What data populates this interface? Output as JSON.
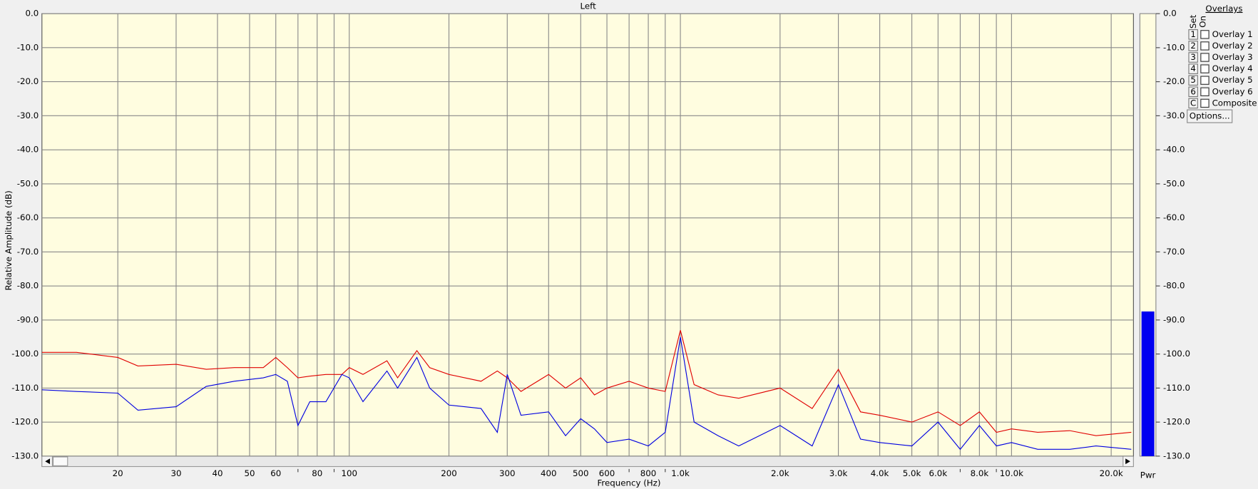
{
  "chart_data": {
    "type": "line",
    "title": "Left",
    "x_label": "Frequency (Hz)",
    "y_label": "Relative Amplitude (dB)",
    "x_scale": "log",
    "grid": true,
    "background": "#fffde0",
    "xlim": [
      11.8,
      23350
    ],
    "ylim": [
      -130,
      0
    ],
    "xticks": [
      20,
      30,
      40,
      50,
      60,
      80,
      100,
      200,
      300,
      400,
      500,
      600,
      800,
      {
        "value": 1000,
        "label": "1.0k"
      },
      {
        "value": 2000,
        "label": "2.0k"
      },
      {
        "value": 3000,
        "label": "3.0k"
      },
      {
        "value": 4000,
        "label": "4.0k"
      },
      {
        "value": 5000,
        "label": "5.0k"
      },
      {
        "value": 6000,
        "label": "6.0k"
      },
      {
        "value": 8000,
        "label": "8.0k"
      },
      {
        "value": 10000,
        "label": "10.0k"
      },
      {
        "value": 20000,
        "label": "20.0k"
      }
    ],
    "xminorticks": [
      70,
      90,
      700,
      900,
      7000,
      9000
    ],
    "yticks": [
      {
        "value": 0,
        "label": "0.0"
      },
      {
        "value": -10,
        "label": "-10.0"
      },
      {
        "value": -20,
        "label": "-20.0"
      },
      {
        "value": -30,
        "label": "-30.0"
      },
      {
        "value": -40,
        "label": "-40.0"
      },
      {
        "value": -50,
        "label": "-50.0"
      },
      {
        "value": -60,
        "label": "-60.0"
      },
      {
        "value": -70,
        "label": "-70.0"
      },
      {
        "value": -80,
        "label": "-80.0"
      },
      {
        "value": -90,
        "label": "-90.0"
      },
      {
        "value": -100,
        "label": "-100.0"
      },
      {
        "value": -110,
        "label": "-110.0"
      },
      {
        "value": -120,
        "label": "-120.0"
      },
      {
        "value": -130,
        "label": "-130.0"
      }
    ],
    "x": [
      11.8,
      15,
      20,
      23,
      30,
      37,
      45,
      55,
      60,
      65,
      70,
      76,
      85,
      95,
      100,
      110,
      130,
      140,
      160,
      175,
      200,
      250,
      280,
      300,
      330,
      400,
      450,
      500,
      550,
      600,
      700,
      800,
      900,
      1000,
      1100,
      1300,
      1500,
      2000,
      2500,
      3000,
      3500,
      4000,
      5000,
      6000,
      7000,
      8000,
      9000,
      10000,
      12000,
      15000,
      18000,
      23000
    ],
    "series": [
      {
        "color": "#e00000",
        "values": [
          -99.5,
          -99.5,
          -101,
          -103.5,
          -103,
          -104.5,
          -104,
          -104,
          -101,
          -104,
          -107,
          -106.5,
          -106,
          -106,
          -104,
          -106,
          -102,
          -107,
          -99,
          -104,
          -106,
          -108,
          -105,
          -107,
          -111,
          -106,
          -110,
          -107,
          -112,
          -110,
          -108,
          -110,
          -111,
          -93,
          -109,
          -112,
          -113,
          -110,
          -116,
          -104.5,
          -117,
          -118,
          -120,
          -117,
          -121,
          -117,
          -123,
          -122,
          -123,
          -122.5,
          -124,
          -123
        ]
      },
      {
        "color": "#0000e0",
        "values": [
          -110.5,
          -111,
          -111.5,
          -116.5,
          -115.5,
          -109.5,
          -108,
          -107,
          -106,
          -108,
          -121,
          -114,
          -114,
          -106,
          -107,
          -114,
          -105,
          -110,
          -101,
          -110,
          -115,
          -116,
          -123,
          -106,
          -118,
          -117,
          -124,
          -119,
          -122,
          -126,
          -125,
          -127,
          -123,
          -95,
          -120,
          -124,
          -127,
          -121,
          -127,
          -109,
          -125,
          -126,
          -127,
          -120,
          -128,
          -121,
          -127,
          -126,
          -128,
          -128,
          -127,
          -128
        ]
      }
    ]
  },
  "meter": {
    "label": "Pwr",
    "value": -87.5,
    "color": "#0000f0"
  },
  "overlays": {
    "title": "Overlays",
    "set_label": "Set",
    "on_label": "On",
    "button": "Options...",
    "rows": [
      {
        "key": "1",
        "label": "Overlay 1",
        "color": "#1e8c1e"
      },
      {
        "key": "2",
        "label": "Overlay 2",
        "color": "#20a8c0"
      },
      {
        "key": "3",
        "label": "Overlay 3",
        "color": "#8a1a8a"
      },
      {
        "key": "4",
        "label": "Overlay 4",
        "color": "#e020e0"
      },
      {
        "key": "5",
        "label": "Overlay 5",
        "color": "#a0522d"
      },
      {
        "key": "6",
        "label": "Overlay 6",
        "color": "#f0905a"
      },
      {
        "key": "C",
        "label": "Composite",
        "color": "#000000"
      }
    ]
  }
}
